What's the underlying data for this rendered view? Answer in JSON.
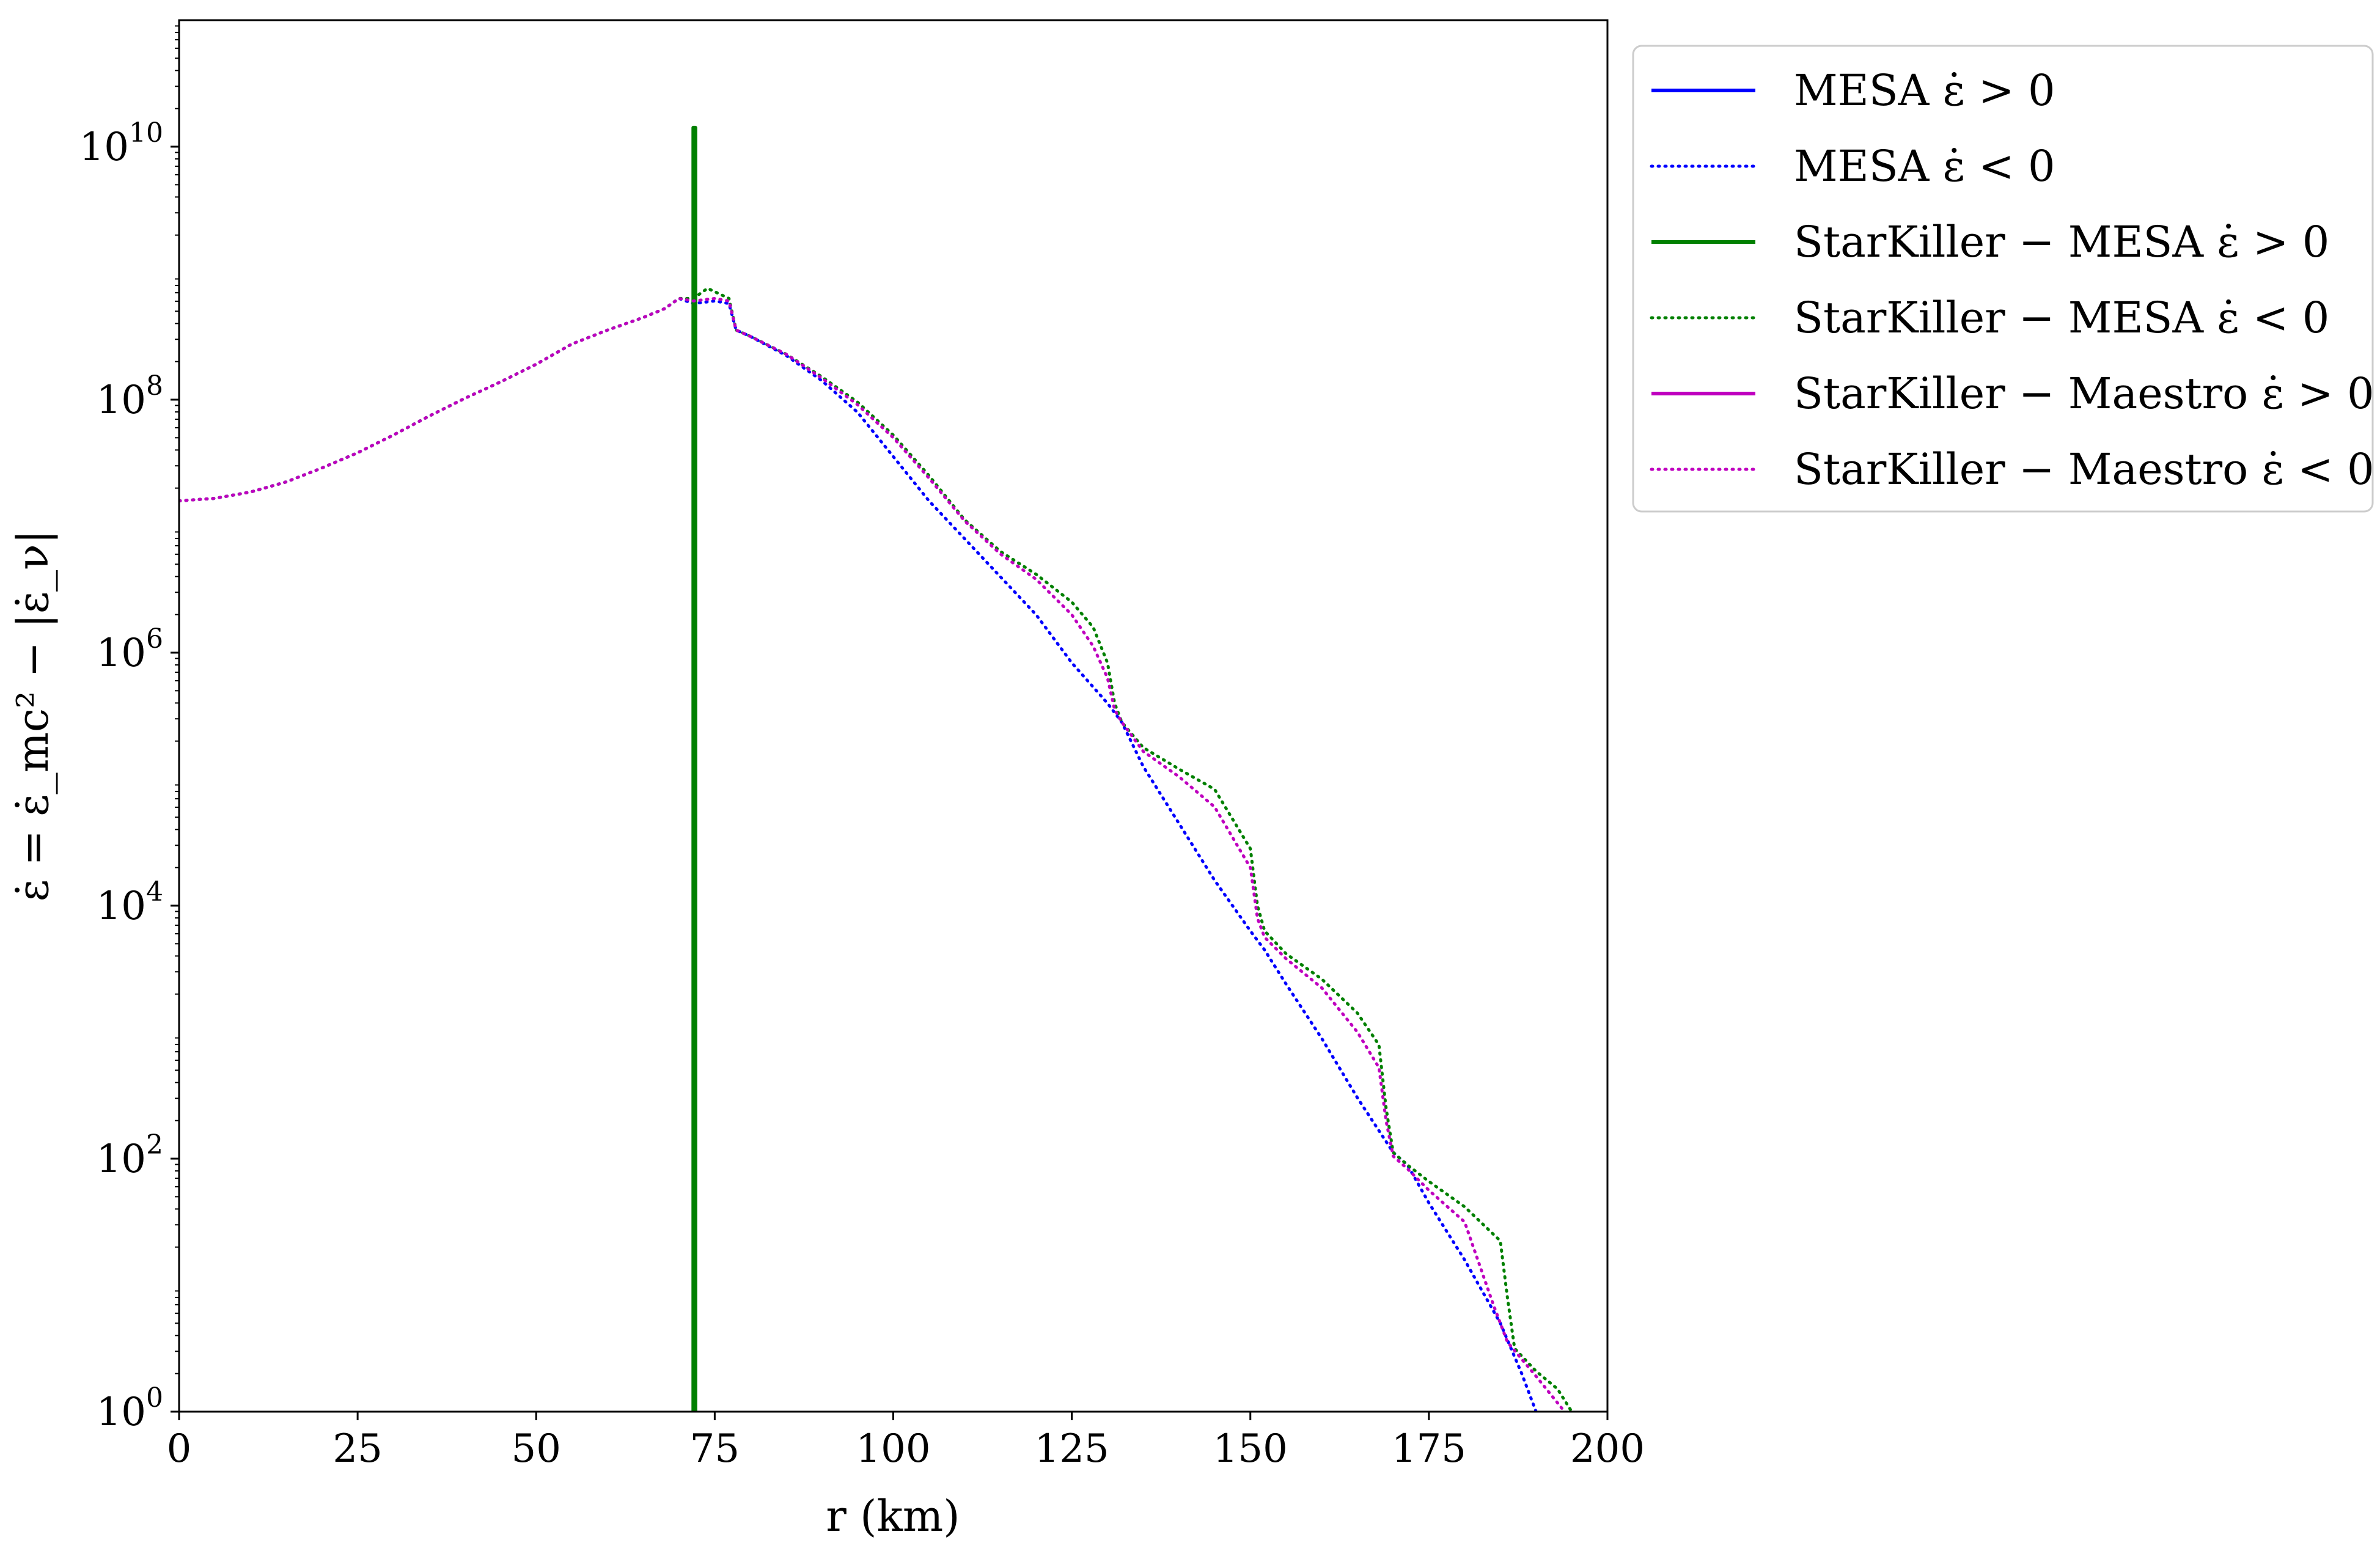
{
  "chart_data": {
    "type": "line",
    "title": "",
    "xlabel": "r (km)",
    "ylabel": "ε̇ = ε̇_mc² − |ε̇_ν|",
    "xlim": [
      0,
      200
    ],
    "ylim_log10": [
      0,
      11
    ],
    "yscale": "log",
    "grid": false,
    "legend_placement": "outside upper right",
    "x_ticks": [
      {
        "value": 0,
        "label": "0"
      },
      {
        "value": 25,
        "label": "25"
      },
      {
        "value": 50,
        "label": "50"
      },
      {
        "value": 75,
        "label": "75"
      },
      {
        "value": 100,
        "label": "100"
      },
      {
        "value": 125,
        "label": "125"
      },
      {
        "value": 150,
        "label": "150"
      },
      {
        "value": 175,
        "label": "175"
      },
      {
        "value": 200,
        "label": "200"
      }
    ],
    "y_ticks": [
      {
        "log10": 0,
        "base": "10",
        "exp": "0"
      },
      {
        "log10": 2,
        "base": "10",
        "exp": "2"
      },
      {
        "log10": 4,
        "base": "10",
        "exp": "4"
      },
      {
        "log10": 6,
        "base": "10",
        "exp": "6"
      },
      {
        "log10": 8,
        "base": "10",
        "exp": "8"
      },
      {
        "log10": 10,
        "base": "10",
        "exp": "10"
      }
    ],
    "series": [
      {
        "name": "MESA ε̇ > 0",
        "color": "#0000ff",
        "style": "solid",
        "x": [],
        "log10_y": []
      },
      {
        "name": "MESA ε̇ < 0",
        "color": "#0000ff",
        "style": "dotted",
        "x": [
          0,
          5,
          10,
          15,
          20,
          25,
          30,
          35,
          40,
          45,
          50,
          55,
          60,
          65,
          68,
          70,
          72,
          75,
          77,
          78,
          80,
          85,
          90,
          95,
          100,
          105,
          110,
          115,
          120,
          125,
          130,
          132,
          135,
          140,
          145,
          150,
          152,
          155,
          160,
          165,
          170,
          172,
          175,
          180,
          185,
          188,
          190
        ],
        "log10_y": [
          7.2,
          7.22,
          7.27,
          7.35,
          7.46,
          7.58,
          7.72,
          7.87,
          8.01,
          8.14,
          8.28,
          8.44,
          8.55,
          8.65,
          8.72,
          8.8,
          8.76,
          8.78,
          8.76,
          8.55,
          8.5,
          8.35,
          8.15,
          7.9,
          7.55,
          7.2,
          6.9,
          6.6,
          6.3,
          5.92,
          5.6,
          5.45,
          5.1,
          4.65,
          4.2,
          3.8,
          3.65,
          3.38,
          2.95,
          2.48,
          2.05,
          1.95,
          1.65,
          1.2,
          0.7,
          0.3,
          0.0
        ]
      },
      {
        "name": "StarKiller − MESA ε̇ > 0",
        "color": "#008000",
        "style": "solid",
        "x": [
          72,
          72,
          72.3,
          72.3
        ],
        "log10_y": [
          0.0,
          10.15,
          10.15,
          0.0
        ]
      },
      {
        "name": "StarKiller − MESA ε̇ < 0",
        "color": "#008000",
        "style": "dotted",
        "x": [
          0,
          5,
          10,
          15,
          20,
          25,
          30,
          35,
          40,
          45,
          50,
          55,
          60,
          65,
          68,
          70,
          72,
          74,
          77,
          78,
          80,
          85,
          90,
          95,
          100,
          105,
          110,
          115,
          120,
          125,
          128,
          130,
          131,
          132,
          135,
          140,
          145,
          150,
          151,
          152,
          155,
          160,
          165,
          168,
          169,
          170,
          172,
          175,
          180,
          185,
          186,
          187,
          190,
          193,
          195
        ],
        "log10_y": [
          7.2,
          7.22,
          7.27,
          7.35,
          7.46,
          7.58,
          7.72,
          7.87,
          8.01,
          8.14,
          8.28,
          8.44,
          8.55,
          8.65,
          8.72,
          8.8,
          8.8,
          8.88,
          8.8,
          8.55,
          8.5,
          8.36,
          8.18,
          7.98,
          7.72,
          7.4,
          7.05,
          6.8,
          6.62,
          6.4,
          6.2,
          5.92,
          5.6,
          5.45,
          5.25,
          5.08,
          4.92,
          4.45,
          4.0,
          3.8,
          3.62,
          3.42,
          3.15,
          2.9,
          2.4,
          2.05,
          1.95,
          1.82,
          1.62,
          1.35,
          0.9,
          0.5,
          0.32,
          0.18,
          0.0
        ]
      },
      {
        "name": "StarKiller − Maestro ε̇ > 0",
        "color": "#bf00bf",
        "style": "solid",
        "x": [],
        "log10_y": []
      },
      {
        "name": "StarKiller − Maestro ε̇ < 0",
        "color": "#bf00bf",
        "style": "dotted",
        "x": [
          0,
          5,
          10,
          15,
          20,
          25,
          30,
          35,
          40,
          45,
          50,
          55,
          60,
          65,
          68,
          70,
          72,
          75,
          77,
          78,
          80,
          85,
          90,
          95,
          100,
          105,
          110,
          115,
          120,
          125,
          128,
          130,
          131,
          132,
          135,
          140,
          145,
          150,
          151,
          152,
          155,
          160,
          165,
          168,
          169,
          170,
          172,
          175,
          180,
          184,
          186,
          190,
          194
        ],
        "log10_y": [
          7.2,
          7.22,
          7.27,
          7.35,
          7.46,
          7.58,
          7.72,
          7.87,
          8.01,
          8.14,
          8.28,
          8.44,
          8.55,
          8.65,
          8.72,
          8.8,
          8.78,
          8.8,
          8.78,
          8.55,
          8.5,
          8.36,
          8.17,
          7.96,
          7.7,
          7.38,
          7.04,
          6.78,
          6.58,
          6.3,
          6.05,
          5.8,
          5.55,
          5.45,
          5.22,
          5.02,
          4.78,
          4.3,
          3.9,
          3.75,
          3.58,
          3.35,
          3.0,
          2.72,
          2.3,
          2.02,
          1.92,
          1.75,
          1.5,
          0.85,
          0.55,
          0.28,
          0.0
        ]
      }
    ]
  }
}
